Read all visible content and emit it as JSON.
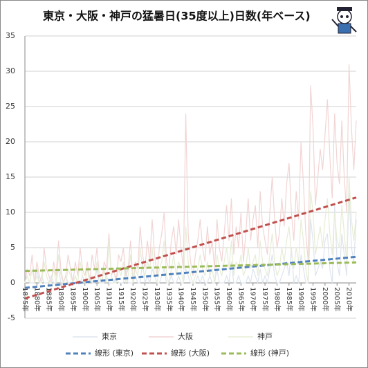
{
  "chart_data": {
    "type": "line",
    "title": "東京・大阪・神戸の猛暑日(35度以上)日数(年ベース)",
    "x": [
      1875,
      1876,
      1877,
      1878,
      1879,
      1880,
      1881,
      1882,
      1883,
      1884,
      1885,
      1886,
      1887,
      1888,
      1889,
      1890,
      1891,
      1892,
      1893,
      1894,
      1895,
      1896,
      1897,
      1898,
      1899,
      1900,
      1901,
      1902,
      1903,
      1904,
      1905,
      1906,
      1907,
      1908,
      1909,
      1910,
      1911,
      1912,
      1913,
      1914,
      1915,
      1916,
      1917,
      1918,
      1919,
      1920,
      1921,
      1922,
      1923,
      1924,
      1925,
      1926,
      1927,
      1928,
      1929,
      1930,
      1931,
      1932,
      1933,
      1934,
      1935,
      1936,
      1937,
      1938,
      1939,
      1940,
      1941,
      1942,
      1943,
      1944,
      1945,
      1946,
      1947,
      1948,
      1949,
      1950,
      1951,
      1952,
      1953,
      1954,
      1955,
      1956,
      1957,
      1958,
      1959,
      1960,
      1961,
      1962,
      1963,
      1964,
      1965,
      1966,
      1967,
      1968,
      1969,
      1970,
      1971,
      1972,
      1973,
      1974,
      1975,
      1976,
      1977,
      1978,
      1979,
      1980,
      1981,
      1982,
      1983,
      1984,
      1985,
      1986,
      1987,
      1988,
      1989,
      1990,
      1991,
      1992,
      1993,
      1994,
      1995,
      1996,
      1997,
      1998,
      1999,
      2000,
      2001,
      2002,
      2003,
      2004,
      2005,
      2006,
      2007,
      2008,
      2009,
      2010,
      2011,
      2012,
      2013
    ],
    "series": [
      {
        "name": "東京",
        "color": "#dde4ee",
        "values": [
          0,
          1,
          0,
          0,
          0,
          2,
          0,
          1,
          0,
          0,
          0,
          1,
          0,
          0,
          2,
          0,
          0,
          1,
          0,
          0,
          0,
          1,
          0,
          0,
          1,
          0,
          0,
          1,
          0,
          0,
          2,
          0,
          0,
          0,
          1,
          0,
          0,
          0,
          1,
          0,
          0,
          0,
          2,
          0,
          0,
          0,
          1,
          0,
          0,
          3,
          0,
          1,
          0,
          2,
          1,
          0,
          0,
          1,
          2,
          0,
          0,
          1,
          0,
          0,
          1,
          0,
          0,
          2,
          1,
          0,
          0,
          0,
          1,
          0,
          1,
          0,
          0,
          1,
          0,
          0,
          2,
          0,
          0,
          0,
          1,
          0,
          3,
          0,
          0,
          1,
          0,
          0,
          0,
          1,
          0,
          2,
          1,
          0,
          2,
          0,
          1,
          0,
          2,
          4,
          1,
          0,
          0,
          1,
          2,
          3,
          1,
          5,
          0,
          1,
          0,
          4,
          2,
          0,
          0,
          9,
          6,
          1,
          2,
          3,
          2,
          6,
          7,
          2,
          0,
          11,
          3,
          1,
          7,
          4,
          1,
          13,
          5,
          3,
          9
        ]
      },
      {
        "name": "大阪",
        "color": "#f2d4d4",
        "values": [
          0,
          2,
          1,
          4,
          0,
          3,
          1,
          0,
          5,
          2,
          1,
          0,
          3,
          1,
          6,
          2,
          0,
          1,
          4,
          2,
          0,
          3,
          1,
          5,
          2,
          1,
          3,
          0,
          4,
          2,
          5,
          1,
          0,
          3,
          2,
          7,
          1,
          2,
          0,
          4,
          3,
          5,
          1,
          2,
          6,
          0,
          3,
          2,
          8,
          4,
          2,
          6,
          3,
          9,
          4,
          1,
          5,
          7,
          10,
          3,
          2,
          6,
          8,
          4,
          9,
          5,
          2,
          24,
          7,
          3,
          1,
          4,
          6,
          9,
          5,
          3,
          8,
          4,
          6,
          2,
          9,
          5,
          3,
          7,
          11,
          6,
          12,
          4,
          8,
          5,
          10,
          3,
          7,
          12,
          6,
          9,
          11,
          5,
          13,
          8,
          6,
          4,
          10,
          15,
          9,
          5,
          7,
          12,
          8,
          14,
          17,
          10,
          6,
          13,
          9,
          20,
          14,
          7,
          3,
          28,
          22,
          11,
          15,
          19,
          16,
          21,
          26,
          18,
          12,
          24,
          17,
          14,
          23,
          15,
          10,
          31,
          22,
          16,
          23
        ]
      },
      {
        "name": "神戸",
        "color": "#e6edd6",
        "values": [
          0,
          1,
          0,
          2,
          0,
          1,
          0,
          0,
          3,
          1,
          0,
          0,
          2,
          0,
          4,
          1,
          0,
          0,
          2,
          1,
          0,
          1,
          0,
          3,
          1,
          0,
          2,
          0,
          1,
          0,
          3,
          1,
          0,
          2,
          0,
          6,
          1,
          0,
          0,
          2,
          1,
          3,
          0,
          1,
          4,
          0,
          2,
          1,
          5,
          2,
          1,
          3,
          2,
          5,
          1,
          0,
          2,
          3,
          6,
          1,
          0,
          2,
          4,
          1,
          3,
          2,
          0,
          8,
          3,
          1,
          0,
          1,
          2,
          4,
          2,
          1,
          3,
          1,
          2,
          0,
          4,
          2,
          1,
          3,
          5,
          2,
          6,
          1,
          3,
          2,
          4,
          1,
          2,
          5,
          2,
          3,
          4,
          1,
          6,
          3,
          2,
          1,
          4,
          7,
          3,
          1,
          2,
          5,
          3,
          6,
          8,
          4,
          2,
          5,
          3,
          9,
          6,
          2,
          0,
          13,
          10,
          4,
          6,
          8,
          5,
          9,
          12,
          7,
          4,
          10,
          6,
          5,
          11,
          7,
          3,
          15,
          9,
          6,
          10
        ]
      },
      {
        "name": "線形 (東京)",
        "color": "#4f81bd",
        "dash": true,
        "x": [
          1875,
          2013
        ],
        "values": [
          -0.7,
          3.7
        ]
      },
      {
        "name": "線形 (大阪)",
        "color": "#c0504d",
        "dash": true,
        "x": [
          1875,
          2013
        ],
        "values": [
          -2.2,
          12.1
        ]
      },
      {
        "name": "線形 (神戸)",
        "color": "#9bbb59",
        "dash": true,
        "x": [
          1875,
          2013
        ],
        "values": [
          1.7,
          2.9
        ]
      }
    ],
    "xlim": [
      1875,
      2013
    ],
    "xticks": [
      {
        "value": 1875,
        "label": "1875年"
      },
      {
        "value": 1880,
        "label": "1880年"
      },
      {
        "value": 1885,
        "label": "1885年"
      },
      {
        "value": 1890,
        "label": "1890年"
      },
      {
        "value": 1895,
        "label": "1895年"
      },
      {
        "value": 1900,
        "label": "1900年"
      },
      {
        "value": 1905,
        "label": "1905年"
      },
      {
        "value": 1910,
        "label": "1910年"
      },
      {
        "value": 1915,
        "label": "1915年"
      },
      {
        "value": 1920,
        "label": "1920年"
      },
      {
        "value": 1925,
        "label": "1925年"
      },
      {
        "value": 1930,
        "label": "1930年"
      },
      {
        "value": 1935,
        "label": "1935年"
      },
      {
        "value": 1940,
        "label": "1940年"
      },
      {
        "value": 1945,
        "label": "1945年"
      },
      {
        "value": 1950,
        "label": "1950年"
      },
      {
        "value": 1955,
        "label": "1955年"
      },
      {
        "value": 1960,
        "label": "1960年"
      },
      {
        "value": 1965,
        "label": "1965年"
      },
      {
        "value": 1970,
        "label": "1970年"
      },
      {
        "value": 1975,
        "label": "1975年"
      },
      {
        "value": 1980,
        "label": "1980年"
      },
      {
        "value": 1985,
        "label": "1985年"
      },
      {
        "value": 1990,
        "label": "1990年"
      },
      {
        "value": 1995,
        "label": "1995年"
      },
      {
        "value": 2000,
        "label": "2000年"
      },
      {
        "value": 2005,
        "label": "2005年"
      },
      {
        "value": 2010,
        "label": "2010年"
      }
    ],
    "ylim": [
      -5,
      35
    ],
    "yticks": [
      -5,
      0,
      5,
      10,
      15,
      20,
      25,
      30,
      35
    ],
    "grid": true
  }
}
